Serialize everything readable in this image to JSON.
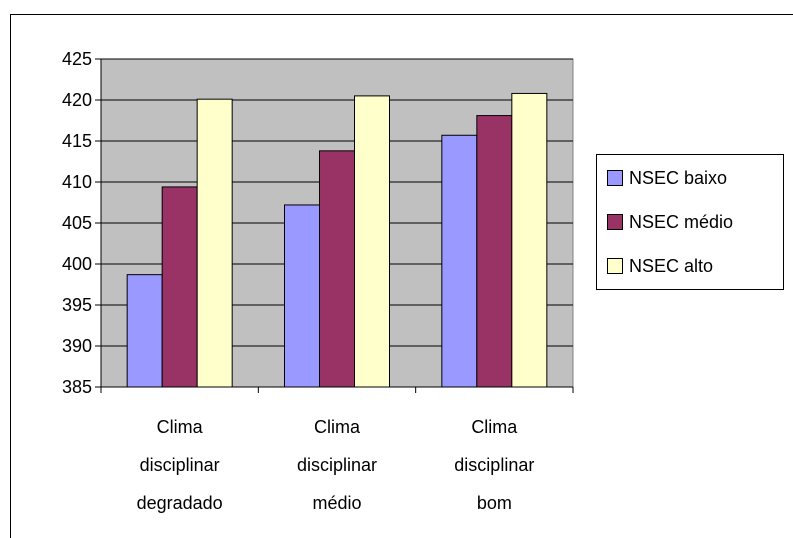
{
  "chart_data": {
    "type": "bar",
    "categories": [
      [
        "Clima",
        "disciplinar",
        "degradado"
      ],
      [
        "Clima",
        "disciplinar",
        "médio"
      ],
      [
        "Clima",
        "disciplinar",
        "bom"
      ]
    ],
    "series": [
      {
        "name": "NSEC baixo",
        "color": "#9999ff",
        "values": [
          398.7,
          407.2,
          415.7
        ]
      },
      {
        "name": "NSEC médio",
        "color": "#993366",
        "values": [
          409.4,
          413.8,
          418.1
        ]
      },
      {
        "name": "NSEC alto",
        "color": "#ffffcc",
        "values": [
          420.1,
          420.5,
          420.8
        ]
      }
    ],
    "ylim": [
      385,
      425
    ],
    "yticks": [
      "385",
      "390",
      "395",
      "400",
      "405",
      "410",
      "415",
      "420",
      "425"
    ],
    "ystep": 5,
    "grid": true,
    "plot_background": "#c0c0c0",
    "legend_position": "right",
    "title": "",
    "xlabel": "",
    "ylabel": ""
  }
}
